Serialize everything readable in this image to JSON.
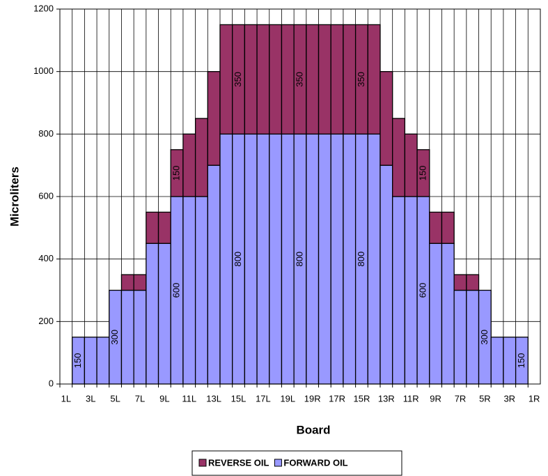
{
  "chart_data": {
    "type": "stacked_bar",
    "xlabel": "Board",
    "ylabel": "Microliters",
    "categories": [
      "1L",
      null,
      "3L",
      null,
      "5L",
      null,
      "7L",
      null,
      "9L",
      null,
      "11L",
      null,
      "13L",
      null,
      "15L",
      null,
      "17L",
      null,
      "19L",
      null,
      "19R",
      null,
      "17R",
      null,
      "15R",
      null,
      "13R",
      null,
      "11R",
      null,
      "9R",
      null,
      "7R",
      null,
      "5R",
      null,
      "3R",
      null,
      "1R"
    ],
    "series": [
      {
        "name": "FORWARD OIL",
        "color": "#9999ff",
        "values": [
          0,
          150,
          150,
          150,
          300,
          300,
          300,
          450,
          450,
          600,
          600,
          600,
          700,
          800,
          800,
          800,
          800,
          800,
          800,
          800,
          800,
          800,
          800,
          800,
          800,
          800,
          700,
          600,
          600,
          600,
          450,
          450,
          300,
          300,
          300,
          150,
          150,
          150,
          0
        ],
        "value_labels": [
          null,
          "150",
          null,
          null,
          "300",
          null,
          null,
          null,
          null,
          "600",
          null,
          null,
          null,
          null,
          "800",
          null,
          null,
          null,
          null,
          "800",
          null,
          null,
          null,
          null,
          "800",
          null,
          null,
          null,
          null,
          "600",
          null,
          null,
          null,
          null,
          "300",
          null,
          null,
          "150",
          null
        ]
      },
      {
        "name": "REVERSE OIL",
        "color": "#993366",
        "values": [
          0,
          0,
          0,
          0,
          0,
          50,
          50,
          100,
          100,
          150,
          200,
          250,
          300,
          350,
          350,
          350,
          350,
          350,
          350,
          350,
          350,
          350,
          350,
          350,
          350,
          350,
          300,
          250,
          200,
          150,
          100,
          100,
          50,
          50,
          0,
          0,
          0,
          0,
          0
        ],
        "value_labels": [
          null,
          null,
          null,
          null,
          null,
          null,
          null,
          null,
          null,
          "150",
          null,
          null,
          null,
          null,
          "350",
          null,
          null,
          null,
          null,
          "350",
          null,
          null,
          null,
          null,
          "350",
          null,
          null,
          null,
          null,
          "150",
          null,
          null,
          null,
          null,
          null,
          null,
          null,
          null,
          null
        ]
      }
    ],
    "ylim": [
      0,
      1200
    ],
    "yticks": [
      0,
      200,
      400,
      600,
      800,
      1000,
      1200
    ],
    "grid": true
  }
}
